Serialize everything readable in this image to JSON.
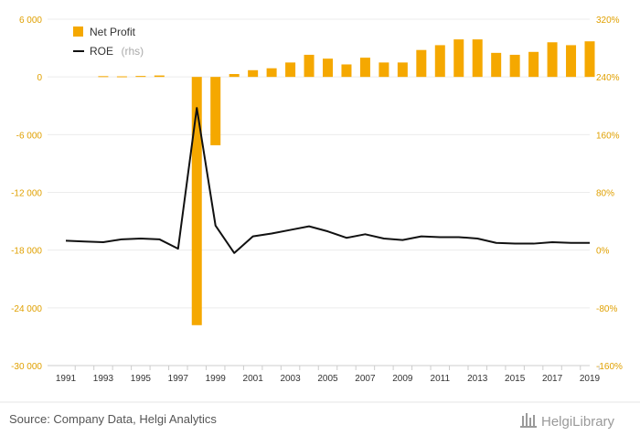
{
  "chart_data": {
    "type": "bar",
    "categories": [
      "1991",
      "1992",
      "1993",
      "1994",
      "1995",
      "1996",
      "1997",
      "1998",
      "1999",
      "2000",
      "2001",
      "2002",
      "2003",
      "2004",
      "2005",
      "2006",
      "2007",
      "2008",
      "2009",
      "2010",
      "2011",
      "2012",
      "2013",
      "2014",
      "2015",
      "2016",
      "2017",
      "2018",
      "2019"
    ],
    "series": [
      {
        "name": "Net Profit",
        "type": "bar",
        "axis": "left",
        "color": "#f5a800",
        "values": [
          0,
          0,
          80,
          60,
          100,
          150,
          0,
          -25800,
          -7100,
          300,
          700,
          900,
          1500,
          2300,
          1900,
          1300,
          2000,
          1500,
          1500,
          2800,
          3300,
          3900,
          3900,
          2500,
          2300,
          2600,
          3600,
          3300,
          3700
        ]
      },
      {
        "name": "ROE",
        "name_suffix": "(rhs)",
        "type": "line",
        "axis": "right",
        "color": "#111111",
        "values": [
          13,
          12,
          11,
          15,
          16,
          15,
          2,
          197,
          34,
          -4,
          19,
          23,
          28,
          33,
          26,
          17,
          22,
          16,
          14,
          19,
          18,
          18,
          16,
          10,
          9,
          9,
          11,
          10,
          10
        ]
      }
    ],
    "left_axis": {
      "min": -30000,
      "max": 6000,
      "ticks": [
        6000,
        0,
        -6000,
        -12000,
        -18000,
        -24000,
        -30000
      ],
      "tick_labels": [
        "6 000",
        "0",
        "-6 000",
        "-12 000",
        "-18 000",
        "-24 000",
        "-30 000"
      ]
    },
    "right_axis": {
      "min": -160,
      "max": 320,
      "ticks": [
        320,
        240,
        160,
        80,
        0,
        -80,
        -160
      ],
      "tick_labels": [
        "320%",
        "240%",
        "160%",
        "80%",
        "0%",
        "-80%",
        "-160%"
      ]
    },
    "x_tick_labels": [
      "1991",
      "1993",
      "1995",
      "1997",
      "1999",
      "2001",
      "2003",
      "2005",
      "2007",
      "2009",
      "2011",
      "2013",
      "2015",
      "2017",
      "2019"
    ],
    "legend_position": "top-left",
    "grid": true
  },
  "source": "Source: Company Data, Helgi Analytics",
  "brand": "HelgiLibrary"
}
